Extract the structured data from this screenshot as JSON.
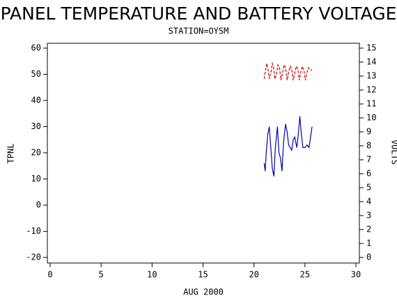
{
  "chart_data": {
    "type": "line",
    "title": "PANEL TEMPERATURE AND BATTERY VOLTAGE",
    "subtitle": "STATION=OYSM",
    "x_label": "AUG 2000",
    "y_label": "TPNL",
    "y2_label": "VOLTS",
    "xlim": [
      0,
      30
    ],
    "xticks": [
      0,
      5,
      10,
      15,
      20,
      25,
      30
    ],
    "ylim": [
      -20,
      60
    ],
    "yticks": [
      -20,
      -10,
      0,
      10,
      20,
      30,
      40,
      50,
      60
    ],
    "y2lim": [
      0,
      15
    ],
    "y2ticks": [
      0,
      1,
      2,
      3,
      4,
      5,
      6,
      7,
      8,
      9,
      10,
      11,
      12,
      13,
      14,
      15
    ],
    "series": [
      {
        "color": "#0000aa",
        "axis": "y",
        "dash": false,
        "x": [
          21.0,
          21.1,
          21.2,
          21.35,
          21.5,
          21.65,
          21.8,
          21.95,
          22.1,
          22.3,
          22.45,
          22.6,
          22.75,
          22.9,
          23.1,
          23.25,
          23.4,
          23.55,
          23.7,
          23.85,
          24.0,
          24.2,
          24.35,
          24.5,
          24.65,
          24.8,
          25.0,
          25.2,
          25.4,
          25.55,
          25.7
        ],
        "values": [
          16,
          13,
          20,
          27,
          30,
          22,
          14,
          11,
          22,
          30,
          20,
          18,
          13,
          24,
          31,
          28,
          23,
          22,
          21,
          25,
          26,
          22,
          27,
          34,
          27,
          22,
          22,
          23,
          22,
          26,
          30
        ]
      },
      {
        "color": "#cc0000",
        "axis": "y2",
        "dash": true,
        "x": [
          21.0,
          21.1,
          21.25,
          21.35,
          21.5,
          21.65,
          21.8,
          21.9,
          22.05,
          22.2,
          22.35,
          22.5,
          22.65,
          22.8,
          22.95,
          23.1,
          23.25,
          23.4,
          23.55,
          23.7,
          23.85,
          24.0,
          24.15,
          24.3,
          24.45,
          24.6,
          24.75,
          24.9,
          25.05,
          25.2,
          25.35,
          25.5,
          25.7
        ],
        "values": [
          12.8,
          13.3,
          13.9,
          13.6,
          12.8,
          13.2,
          13.9,
          13.7,
          12.8,
          13.1,
          13.8,
          13.6,
          12.7,
          13.2,
          13.8,
          13.6,
          12.7,
          13.3,
          13.7,
          13.5,
          12.7,
          13.2,
          13.7,
          13.5,
          12.7,
          13.3,
          13.7,
          13.4,
          12.7,
          13.3,
          13.6,
          13.5,
          13.4
        ]
      }
    ]
  }
}
